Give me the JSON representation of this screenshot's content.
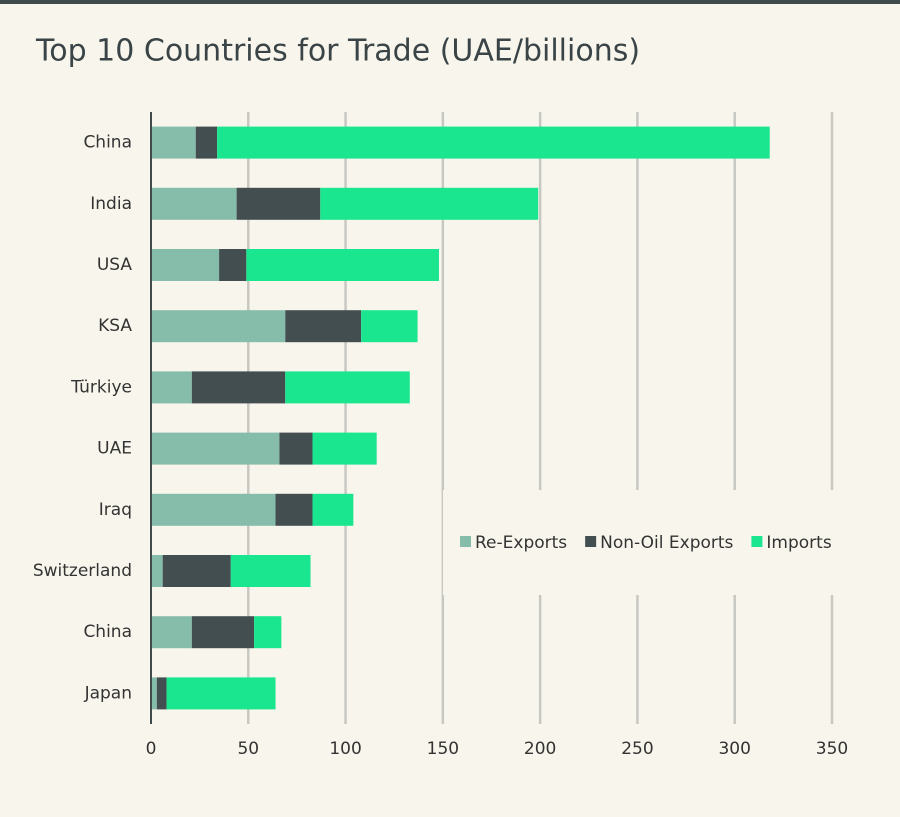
{
  "chart_data": {
    "type": "stacked_barh",
    "title": "Top 10 Countries for Trade (UAE/billions)",
    "categories": [
      "China",
      "India",
      "USA",
      "KSA",
      "Türkiye",
      "UAE",
      "Iraq",
      "Switzerland",
      "China",
      "Japan"
    ],
    "series": [
      {
        "name": "Re-Exports",
        "color": "#86bcaa",
        "values": [
          23,
          44,
          35,
          69,
          21,
          66,
          64,
          6,
          21,
          3
        ]
      },
      {
        "name": "Non-Oil Exports",
        "color": "#424e50",
        "values": [
          11,
          43,
          14,
          39,
          48,
          17,
          19,
          35,
          32,
          5
        ]
      },
      {
        "name": "Imports",
        "color": "#1ae68f",
        "values": [
          284,
          112,
          99,
          29,
          64,
          33,
          21,
          41,
          14,
          56
        ]
      }
    ],
    "xlim": [
      0,
      350
    ],
    "xticks": [
      0,
      50,
      100,
      150,
      200,
      250,
      300,
      350
    ],
    "grid": true,
    "legend": "right"
  }
}
